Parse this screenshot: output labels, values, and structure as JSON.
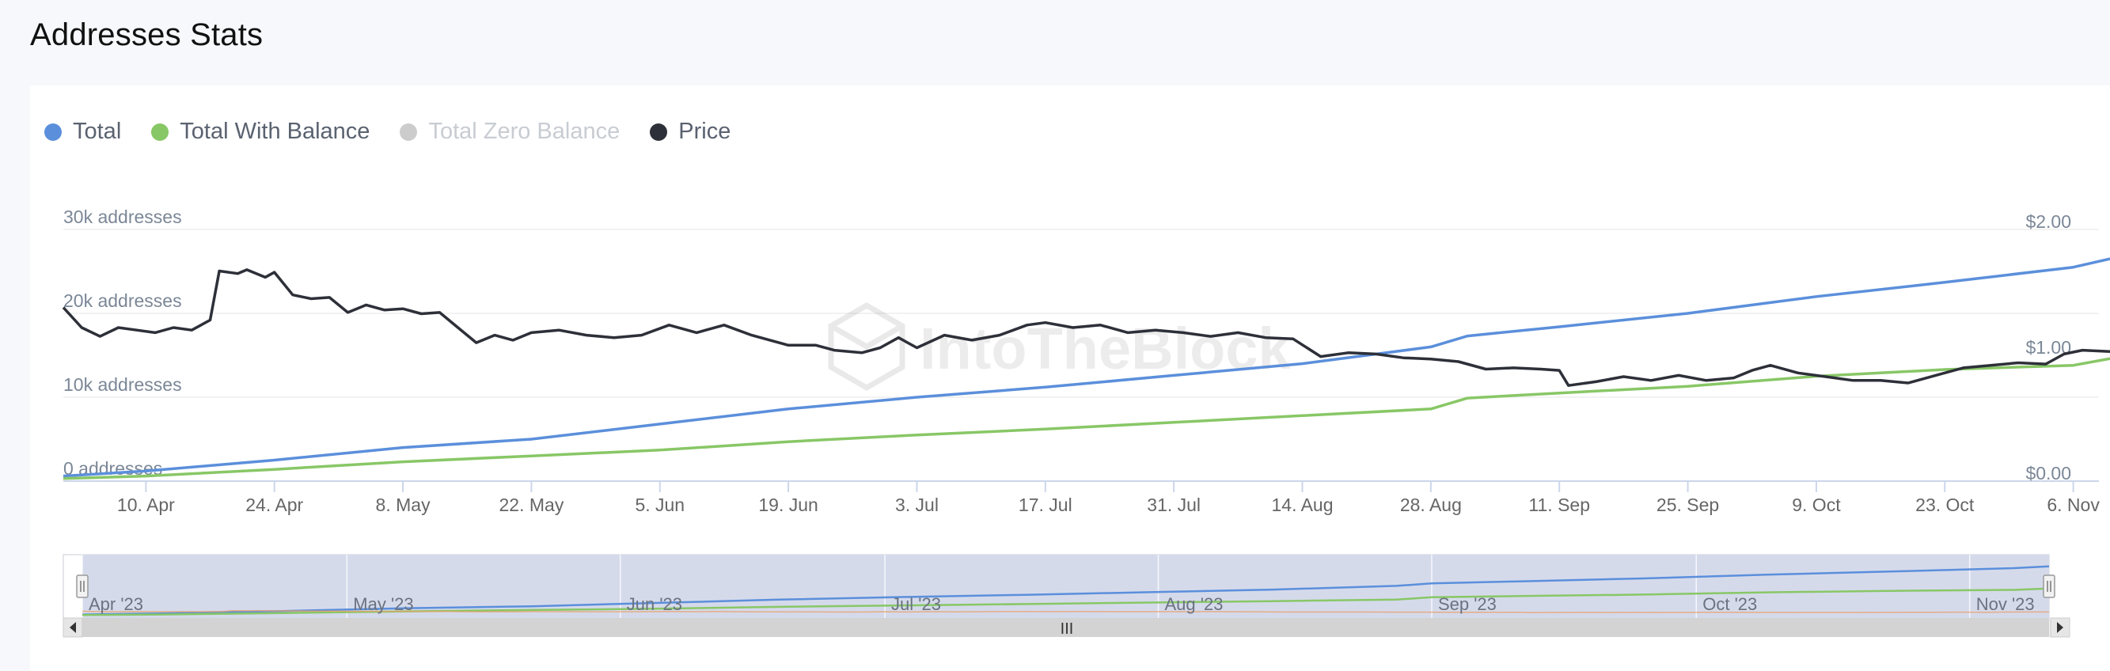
{
  "page": {
    "title": "Addresses Stats"
  },
  "legend": [
    {
      "name": "Total",
      "color": "#5b8fdb",
      "enabled": true
    },
    {
      "name": "Total With Balance",
      "color": "#88c766",
      "enabled": true
    },
    {
      "name": "Total Zero Balance",
      "color": "#cccccc",
      "enabled": false
    },
    {
      "name": "Price",
      "color": "#2d3038",
      "enabled": true
    }
  ],
  "watermark": "IntoTheBlock",
  "navigator_grip": "III",
  "chart_data": {
    "type": "line",
    "title": "Addresses Stats",
    "x_range": [
      "2023-04-01",
      "2023-11-10"
    ],
    "y_left": {
      "ticks": [
        "0 addresses",
        "10k addresses",
        "20k addresses",
        "30k addresses"
      ],
      "range": [
        0,
        30000
      ]
    },
    "y_right": {
      "ticks": [
        "$0.00",
        "$1.00",
        "$2.00"
      ],
      "range": [
        0,
        2
      ],
      "current_price_label": "$1.00"
    },
    "x_ticks": [
      "10. Apr",
      "24. Apr",
      "8. May",
      "22. May",
      "5. Jun",
      "19. Jun",
      "3. Jul",
      "17. Jul",
      "31. Jul",
      "14. Aug",
      "28. Aug",
      "11. Sep",
      "25. Sep",
      "9. Oct",
      "23. Oct",
      "6. Nov"
    ],
    "navigator_ticks": [
      "Apr '23",
      "May '23",
      "Jun '23",
      "Jul '23",
      "Aug '23",
      "Sep '23",
      "Oct '23",
      "Nov '23"
    ],
    "grid": true,
    "legend_position": "top-left",
    "series": [
      {
        "name": "Total",
        "axis": "left",
        "color": "#5b8fdb",
        "points": [
          [
            "2023-04-01",
            600
          ],
          [
            "2023-04-10",
            1200
          ],
          [
            "2023-04-24",
            2500
          ],
          [
            "2023-05-08",
            4000
          ],
          [
            "2023-05-22",
            5000
          ],
          [
            "2023-06-05",
            6800
          ],
          [
            "2023-06-19",
            8600
          ],
          [
            "2023-07-03",
            10000
          ],
          [
            "2023-07-17",
            11200
          ],
          [
            "2023-07-31",
            12600
          ],
          [
            "2023-08-14",
            14000
          ],
          [
            "2023-08-28",
            16000
          ],
          [
            "2023-09-01",
            17300
          ],
          [
            "2023-09-11",
            18400
          ],
          [
            "2023-09-25",
            20000
          ],
          [
            "2023-10-09",
            22000
          ],
          [
            "2023-10-23",
            23700
          ],
          [
            "2023-11-06",
            25500
          ],
          [
            "2023-11-10",
            26500
          ]
        ]
      },
      {
        "name": "Total With Balance",
        "axis": "left",
        "color": "#88c766",
        "points": [
          [
            "2023-04-01",
            300
          ],
          [
            "2023-04-10",
            600
          ],
          [
            "2023-04-24",
            1400
          ],
          [
            "2023-05-08",
            2300
          ],
          [
            "2023-05-22",
            3000
          ],
          [
            "2023-06-05",
            3700
          ],
          [
            "2023-06-19",
            4700
          ],
          [
            "2023-07-03",
            5500
          ],
          [
            "2023-07-17",
            6200
          ],
          [
            "2023-07-31",
            7000
          ],
          [
            "2023-08-14",
            7800
          ],
          [
            "2023-08-28",
            8600
          ],
          [
            "2023-09-01",
            9900
          ],
          [
            "2023-09-11",
            10500
          ],
          [
            "2023-09-25",
            11300
          ],
          [
            "2023-10-09",
            12500
          ],
          [
            "2023-10-23",
            13300
          ],
          [
            "2023-11-06",
            13800
          ],
          [
            "2023-11-10",
            14600
          ]
        ]
      },
      {
        "name": "Price",
        "axis": "right",
        "color": "#2d3038",
        "points": [
          [
            "2023-04-01",
            1.38
          ],
          [
            "2023-04-03",
            1.22
          ],
          [
            "2023-04-05",
            1.15
          ],
          [
            "2023-04-07",
            1.22
          ],
          [
            "2023-04-09",
            1.2
          ],
          [
            "2023-04-11",
            1.18
          ],
          [
            "2023-04-13",
            1.22
          ],
          [
            "2023-04-15",
            1.2
          ],
          [
            "2023-04-17",
            1.28
          ],
          [
            "2023-04-18",
            1.67
          ],
          [
            "2023-04-20",
            1.65
          ],
          [
            "2023-04-21",
            1.68
          ],
          [
            "2023-04-23",
            1.62
          ],
          [
            "2023-04-24",
            1.66
          ],
          [
            "2023-04-26",
            1.48
          ],
          [
            "2023-04-28",
            1.45
          ],
          [
            "2023-04-30",
            1.46
          ],
          [
            "2023-05-02",
            1.34
          ],
          [
            "2023-05-04",
            1.4
          ],
          [
            "2023-05-06",
            1.36
          ],
          [
            "2023-05-08",
            1.37
          ],
          [
            "2023-05-10",
            1.33
          ],
          [
            "2023-05-12",
            1.34
          ],
          [
            "2023-05-14",
            1.22
          ],
          [
            "2023-05-16",
            1.1
          ],
          [
            "2023-05-18",
            1.16
          ],
          [
            "2023-05-20",
            1.12
          ],
          [
            "2023-05-22",
            1.18
          ],
          [
            "2023-05-25",
            1.2
          ],
          [
            "2023-05-28",
            1.16
          ],
          [
            "2023-05-31",
            1.14
          ],
          [
            "2023-06-03",
            1.16
          ],
          [
            "2023-06-06",
            1.24
          ],
          [
            "2023-06-09",
            1.18
          ],
          [
            "2023-06-12",
            1.24
          ],
          [
            "2023-06-15",
            1.16
          ],
          [
            "2023-06-17",
            1.12
          ],
          [
            "2023-06-19",
            1.08
          ],
          [
            "2023-06-22",
            1.08
          ],
          [
            "2023-06-24",
            1.04
          ],
          [
            "2023-06-27",
            1.02
          ],
          [
            "2023-06-29",
            1.06
          ],
          [
            "2023-07-01",
            1.14
          ],
          [
            "2023-07-03",
            1.06
          ],
          [
            "2023-07-06",
            1.16
          ],
          [
            "2023-07-09",
            1.12
          ],
          [
            "2023-07-12",
            1.16
          ],
          [
            "2023-07-15",
            1.24
          ],
          [
            "2023-07-17",
            1.26
          ],
          [
            "2023-07-20",
            1.22
          ],
          [
            "2023-07-23",
            1.24
          ],
          [
            "2023-07-26",
            1.18
          ],
          [
            "2023-07-29",
            1.2
          ],
          [
            "2023-08-01",
            1.18
          ],
          [
            "2023-08-04",
            1.15
          ],
          [
            "2023-08-07",
            1.18
          ],
          [
            "2023-08-10",
            1.14
          ],
          [
            "2023-08-13",
            1.13
          ],
          [
            "2023-08-16",
            0.99
          ],
          [
            "2023-08-19",
            1.02
          ],
          [
            "2023-08-22",
            1.01
          ],
          [
            "2023-08-25",
            0.98
          ],
          [
            "2023-08-28",
            0.97
          ],
          [
            "2023-08-31",
            0.95
          ],
          [
            "2023-09-03",
            0.89
          ],
          [
            "2023-09-06",
            0.9
          ],
          [
            "2023-09-09",
            0.89
          ],
          [
            "2023-09-11",
            0.88
          ],
          [
            "2023-09-12",
            0.76
          ],
          [
            "2023-09-15",
            0.79
          ],
          [
            "2023-09-18",
            0.83
          ],
          [
            "2023-09-21",
            0.8
          ],
          [
            "2023-09-24",
            0.84
          ],
          [
            "2023-09-27",
            0.8
          ],
          [
            "2023-09-30",
            0.82
          ],
          [
            "2023-10-02",
            0.88
          ],
          [
            "2023-10-04",
            0.92
          ],
          [
            "2023-10-07",
            0.86
          ],
          [
            "2023-10-10",
            0.83
          ],
          [
            "2023-10-13",
            0.8
          ],
          [
            "2023-10-16",
            0.8
          ],
          [
            "2023-10-19",
            0.78
          ],
          [
            "2023-10-22",
            0.84
          ],
          [
            "2023-10-25",
            0.9
          ],
          [
            "2023-10-28",
            0.92
          ],
          [
            "2023-10-31",
            0.94
          ],
          [
            "2023-11-03",
            0.93
          ],
          [
            "2023-11-05",
            1.01
          ],
          [
            "2023-11-07",
            1.04
          ],
          [
            "2023-11-10",
            1.03
          ]
        ]
      }
    ]
  }
}
